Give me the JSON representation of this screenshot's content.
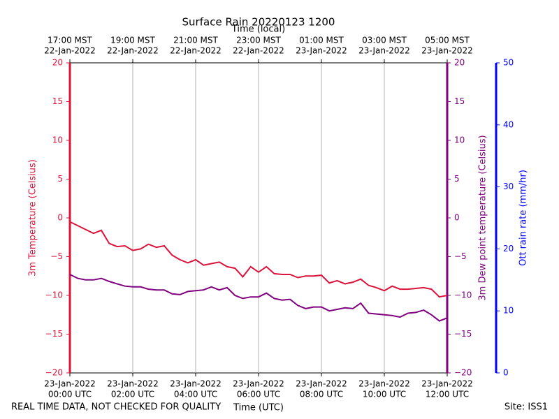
{
  "chart_data": {
    "type": "line",
    "title": "Surface Rain 20220123 1200",
    "xlabel": "Time (UTC)",
    "x2label": "Time (local)",
    "ylabel": "3m Temperature (Celsius)",
    "y2label": "3m Dew point temperature (Celsius)",
    "y3label": "Ott rain rate (mm/hr)",
    "footer_left": "REAL TIME DATA, NOT CHECKED FOR QUALITY",
    "footer_right": "Site: ISS1",
    "grid": true,
    "xlim": [
      0,
      12
    ],
    "xticks": [
      {
        "value": 0,
        "label": [
          "23-Jan-2022",
          "00:00 UTC"
        ]
      },
      {
        "value": 2,
        "label": [
          "23-Jan-2022",
          "02:00 UTC"
        ]
      },
      {
        "value": 4,
        "label": [
          "23-Jan-2022",
          "04:00 UTC"
        ]
      },
      {
        "value": 6,
        "label": [
          "23-Jan-2022",
          "06:00 UTC"
        ]
      },
      {
        "value": 8,
        "label": [
          "23-Jan-2022",
          "08:00 UTC"
        ]
      },
      {
        "value": 10,
        "label": [
          "23-Jan-2022",
          "10:00 UTC"
        ]
      },
      {
        "value": 12,
        "label": [
          "23-Jan-2022",
          "12:00 UTC"
        ]
      }
    ],
    "x2ticks": [
      {
        "value": 0,
        "label": [
          "17:00 MST",
          "22-Jan-2022"
        ]
      },
      {
        "value": 2,
        "label": [
          "19:00 MST",
          "22-Jan-2022"
        ]
      },
      {
        "value": 4,
        "label": [
          "21:00 MST",
          "22-Jan-2022"
        ]
      },
      {
        "value": 6,
        "label": [
          "23:00 MST",
          "22-Jan-2022"
        ]
      },
      {
        "value": 8,
        "label": [
          "01:00 MST",
          "23-Jan-2022"
        ]
      },
      {
        "value": 10,
        "label": [
          "03:00 MST",
          "23-Jan-2022"
        ]
      },
      {
        "value": 12,
        "label": [
          "05:00 MST",
          "23-Jan-2022"
        ]
      }
    ],
    "ylim": [
      -20,
      20
    ],
    "yticks": [
      {
        "value": -20,
        "label": "−20"
      },
      {
        "value": -15,
        "label": "−15"
      },
      {
        "value": -10,
        "label": "−10"
      },
      {
        "value": -5,
        "label": "−5"
      },
      0,
      5,
      10,
      15,
      20
    ],
    "y2lim": [
      -20,
      20
    ],
    "y2ticks": [
      {
        "value": -20,
        "label": "−20"
      },
      {
        "value": -15,
        "label": "−15"
      },
      {
        "value": -10,
        "label": "−10"
      },
      {
        "value": -5,
        "label": "−5"
      },
      0,
      5,
      10,
      15,
      20
    ],
    "y3lim": [
      0,
      50
    ],
    "y3ticks": [
      0,
      10,
      20,
      30,
      40,
      50
    ],
    "y_color": "#dc143c",
    "y2_color": "#800080",
    "y3_color": "#0000ff",
    "x": [
      0,
      0.25,
      0.5,
      0.75,
      1,
      1.25,
      1.5,
      1.75,
      2,
      2.25,
      2.5,
      2.75,
      3,
      3.25,
      3.5,
      3.75,
      4,
      4.25,
      4.5,
      4.75,
      5,
      5.25,
      5.5,
      5.75,
      6,
      6.25,
      6.5,
      6.75,
      7,
      7.25,
      7.5,
      7.75,
      8,
      8.25,
      8.5,
      8.75,
      9,
      9.25,
      9.5,
      9.75,
      10,
      10.25,
      10.5,
      10.75,
      11,
      11.25,
      11.5,
      11.75,
      12
    ],
    "series": [
      {
        "color": "#dc143c",
        "values": [
          -0.5,
          -1.0,
          -1.5,
          -2.0,
          -1.6,
          -3.3,
          -3.7,
          -3.6,
          -4.2,
          -4.0,
          -3.4,
          -3.8,
          -3.6,
          -4.8,
          -5.4,
          -5.8,
          -5.4,
          -6.1,
          -5.9,
          -5.7,
          -6.3,
          -6.5,
          -7.6,
          -6.3,
          -7.0,
          -6.3,
          -7.2,
          -7.3,
          -7.3,
          -7.7,
          -7.5,
          -7.5,
          -7.4,
          -8.4,
          -8.1,
          -8.5,
          -8.3,
          -7.9,
          -8.7,
          -9.0,
          -9.4,
          -8.8,
          -9.2,
          -9.2,
          -9.1,
          -9.0,
          -9.2,
          -10.2,
          -10.0
        ]
      },
      {
        "color": "#800080",
        "axis": "y2",
        "values": [
          -7.3,
          -7.8,
          -8.0,
          -8.0,
          -7.8,
          -8.2,
          -8.5,
          -8.8,
          -8.9,
          -8.9,
          -9.2,
          -9.3,
          -9.3,
          -9.8,
          -9.9,
          -9.5,
          -9.4,
          -9.3,
          -8.9,
          -9.3,
          -9.0,
          -10.0,
          -10.4,
          -10.2,
          -10.2,
          -9.7,
          -10.4,
          -10.6,
          -10.5,
          -11.3,
          -11.7,
          -11.5,
          -11.5,
          -12.0,
          -11.8,
          -11.6,
          -11.7,
          -11.0,
          -12.3,
          -12.4,
          -12.5,
          -12.6,
          -12.8,
          -12.3,
          -12.2,
          -11.9,
          -12.5,
          -13.3,
          -12.9
        ]
      }
    ]
  }
}
